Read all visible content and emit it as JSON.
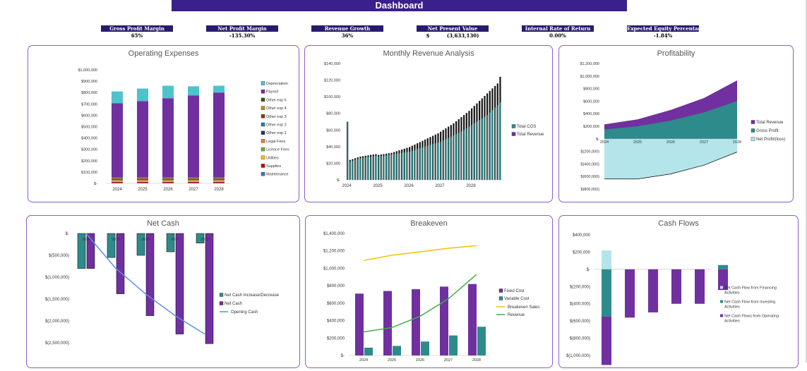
{
  "header": {
    "title": "Dashboard"
  },
  "kpis": [
    {
      "label": "Gross Profit Margin",
      "value": "65%"
    },
    {
      "label": "Net Profit Margin",
      "value": "-135.30%"
    },
    {
      "label": "Revenue Growth",
      "value": "36%"
    },
    {
      "label": "Net Present Value",
      "value": "$          (3,633,130)"
    },
    {
      "label": "Internal Rate of Return",
      "value": "0.00%"
    },
    {
      "label": "Expected Equity Percentage",
      "value": "-1.84%"
    }
  ],
  "colors": {
    "purple": "#7030a0",
    "teal": "#2e8b8b",
    "cyan": "#4fc3cc",
    "lightcyan": "#b3e5ea",
    "yellow": "#f5c000",
    "green": "#3fae49",
    "blue": "#5b8fe8",
    "header": "#3b1f8a"
  },
  "chart_data": [
    {
      "type": "bar",
      "title": "Operating Expenses",
      "categories": [
        "2024",
        "2025",
        "2026",
        "2027",
        "2028"
      ],
      "yticks": [
        "$1,000,000",
        "$900,000",
        "$800,000",
        "$700,000",
        "$600,000",
        "$500,000",
        "$400,000",
        "$300,000",
        "$200,000",
        "$100,000",
        "$-"
      ],
      "ylim": [
        0,
        1000000
      ],
      "stacked": true,
      "series": [
        {
          "name": "Maintenance",
          "color": "#4472c4",
          "values": [
            5000,
            5000,
            5000,
            5000,
            5000
          ]
        },
        {
          "name": "Supplies",
          "color": "#c00000",
          "values": [
            8000,
            8000,
            8000,
            8000,
            8000
          ]
        },
        {
          "name": "Utilities",
          "color": "#ffc000",
          "values": [
            6000,
            6000,
            6000,
            6000,
            6000
          ]
        },
        {
          "name": "Licence Fees",
          "color": "#70ad47",
          "values": [
            5000,
            5000,
            5000,
            5000,
            5000
          ]
        },
        {
          "name": "Legal Fees",
          "color": "#ed7d31",
          "values": [
            6000,
            6000,
            6000,
            6000,
            6000
          ]
        },
        {
          "name": "Other exp 1",
          "color": "#1f3864",
          "values": [
            5000,
            5000,
            5000,
            5000,
            5000
          ]
        },
        {
          "name": "Other exp 2",
          "color": "#2f75b5",
          "values": [
            5000,
            5000,
            5000,
            5000,
            5000
          ]
        },
        {
          "name": "Other exp 3",
          "color": "#833c0b",
          "values": [
            5000,
            5000,
            5000,
            5000,
            5000
          ]
        },
        {
          "name": "Other exp 4",
          "color": "#bf8f00",
          "values": [
            5000,
            5000,
            5000,
            5000,
            5000
          ]
        },
        {
          "name": "Other exp 5",
          "color": "#375623",
          "values": [
            5000,
            5000,
            5000,
            5000,
            5000
          ]
        },
        {
          "name": "Payroll",
          "color": "#7030a0",
          "values": [
            650000,
            670000,
            695000,
            720000,
            745000
          ]
        },
        {
          "name": "Depreciation",
          "color": "#4fc3cc",
          "values": [
            105000,
            110000,
            110000,
            80000,
            60000
          ]
        }
      ]
    },
    {
      "type": "bar",
      "title": "Monthly Revenue Analysis",
      "xticks": [
        "2024",
        "2025",
        "2026",
        "2027",
        "2028"
      ],
      "yticks": [
        "$140,000",
        "$120,000",
        "$100,000",
        "$80,000",
        "$60,000",
        "$40,000",
        "$20,000",
        "$-"
      ],
      "ylim": [
        0,
        140000
      ],
      "series": [
        {
          "name": "Total COS",
          "color": "#2e8b8b",
          "values": [
            70000,
            22000,
            23000,
            24000,
            25000,
            26000,
            26500,
            27000,
            27500,
            28000,
            28500,
            29000,
            28000,
            28500,
            29000,
            29500,
            30000,
            30500,
            31000,
            31500,
            32000,
            32500,
            33000,
            33500,
            34000,
            35000,
            36000,
            37000,
            38000,
            39000,
            40000,
            41000,
            42000,
            43000,
            44000,
            45000,
            46000,
            47500,
            49000,
            50500,
            52000,
            53500,
            55000,
            56500,
            58000,
            60000,
            62000,
            64000,
            66000,
            68000,
            70000,
            72000,
            74000,
            76000,
            78000,
            81000,
            84000,
            87000,
            90000,
            93000
          ]
        },
        {
          "name": "Total Revenue",
          "color": "#1a1a1a",
          "values": [
            70000,
            24000,
            25000,
            26000,
            27000,
            28000,
            28500,
            29000,
            29500,
            30000,
            30500,
            31000,
            30000,
            30500,
            31000,
            31500,
            32000,
            32500,
            33500,
            34500,
            35500,
            36500,
            37500,
            38500,
            39500,
            41000,
            42500,
            44000,
            45500,
            47000,
            48500,
            50000,
            51500,
            53000,
            54500,
            56000,
            58000,
            60000,
            62000,
            64000,
            66000,
            68000,
            70500,
            73000,
            75500,
            78000,
            80500,
            83000,
            86000,
            89000,
            92000,
            95000,
            98000,
            101000,
            104000,
            107000,
            110000,
            113000,
            116000,
            124000
          ]
        }
      ]
    },
    {
      "type": "area",
      "title": "Profitability",
      "categories": [
        "2024",
        "2025",
        "2026",
        "2027",
        "2028"
      ],
      "yticks": [
        "$1,200,000",
        "$1,000,000",
        "$800,000",
        "$600,000",
        "$400,000",
        "$200,000",
        "$-",
        "$(200,000)",
        "$(400,000)",
        "$(600,000)",
        "$(800,000)"
      ],
      "ylim": [
        -800000,
        1200000
      ],
      "series": [
        {
          "name": "Total Revenue",
          "color": "#7030a0",
          "values": [
            230000,
            310000,
            460000,
            650000,
            930000
          ]
        },
        {
          "name": "Gross Profit",
          "color": "#2e8b8b",
          "values": [
            150000,
            200000,
            290000,
            420000,
            600000
          ]
        },
        {
          "name": "Net Profit/(loss)",
          "color": "#b3e5ea",
          "values": [
            -640000,
            -640000,
            -560000,
            -420000,
            -210000
          ]
        }
      ]
    },
    {
      "type": "bar",
      "title": "Net Cash",
      "categories": [
        "2024",
        "2025",
        "2026",
        "2027",
        "2028"
      ],
      "yticks": [
        "$-",
        "$(500,000)",
        "$(1,000,000)",
        "$(1,500,000)",
        "$(2,000,000)",
        "$(2,500,000)"
      ],
      "ylim": [
        -2500000,
        0
      ],
      "series": [
        {
          "name": "Net Cash Increase/Decrease",
          "color": "#2e8b8b",
          "values": [
            -800000,
            -550000,
            -500000,
            -420000,
            -220000
          ]
        },
        {
          "name": "Net Cash",
          "color": "#7030a0",
          "values": [
            -800000,
            -1380000,
            -1880000,
            -2300000,
            -2520000
          ]
        },
        {
          "name": "Opening Cash",
          "color": "#5b8fe8",
          "values": [
            0,
            -800000,
            -1380000,
            -1880000,
            -2300000
          ]
        }
      ]
    },
    {
      "type": "bar",
      "title": "Breakeven",
      "categories": [
        "2024",
        "2025",
        "2026",
        "2027",
        "2028"
      ],
      "yticks": [
        "$1,400,000",
        "$1,200,000",
        "$1,000,000",
        "$800,000",
        "$600,000",
        "$400,000",
        "$200,000",
        "$-"
      ],
      "ylim": [
        0,
        1400000
      ],
      "series": [
        {
          "name": "Fixed Cost",
          "color": "#7030a0",
          "values": [
            710000,
            740000,
            760000,
            790000,
            820000
          ]
        },
        {
          "name": "Variable Cost",
          "color": "#2e8b8b",
          "values": [
            90000,
            110000,
            160000,
            230000,
            330000
          ]
        },
        {
          "name": "Breakeven Sales",
          "color": "#f5c000",
          "values": [
            1090000,
            1150000,
            1190000,
            1230000,
            1260000
          ]
        },
        {
          "name": "Revenue",
          "color": "#3fae49",
          "values": [
            270000,
            320000,
            450000,
            650000,
            930000
          ]
        }
      ]
    },
    {
      "type": "bar",
      "title": "Cash Flows",
      "yticks": [
        "$400,000",
        "$200,000",
        "$-",
        "$(200,000)",
        "$(400,000)",
        "$(600,000)",
        "$(800,000)",
        "$(1,000,000)"
      ],
      "ylim": [
        -1000000,
        400000
      ],
      "series": [
        {
          "name": "Net Cash Flow from Financing Activities",
          "color": "#b3e5ea",
          "values": [
            220000,
            0,
            0,
            0,
            0,
            0
          ]
        },
        {
          "name": "Net Cash Flow from Investing Activities",
          "color": "#2e8b8b",
          "values": [
            -550000,
            0,
            0,
            0,
            0,
            50000
          ]
        },
        {
          "name": "Net Cash Flows from Operating Activities",
          "color": "#7030a0",
          "values": [
            -560000,
            -560000,
            -500000,
            -400000,
            -400000,
            -240000
          ]
        }
      ]
    }
  ]
}
